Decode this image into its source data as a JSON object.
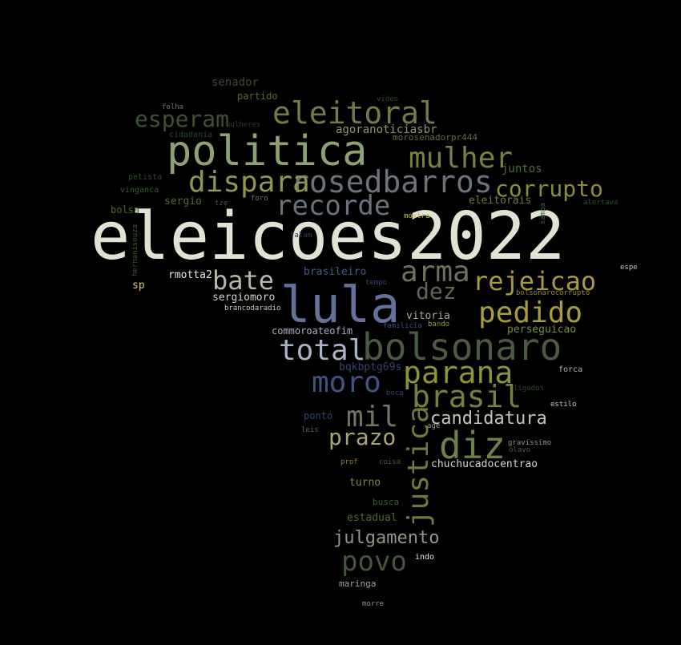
{
  "words": [
    {
      "text": "eleicoes2022",
      "color": "#dfe3d2"
    },
    {
      "text": "politica",
      "color": "#8ea171"
    },
    {
      "text": "lula",
      "color": "#63719b"
    },
    {
      "text": "bolsonaro",
      "color": "#4a5b41"
    },
    {
      "text": "rosedbarros",
      "color": "#6b727a"
    },
    {
      "text": "dispara",
      "color": "#8f9452"
    },
    {
      "text": "eleitoral",
      "color": "#6d7d46"
    },
    {
      "text": "mulher",
      "color": "#77813f"
    },
    {
      "text": "recorde",
      "color": "#66727d"
    },
    {
      "text": "corrupto",
      "color": "#8a8e31"
    },
    {
      "text": "esperam",
      "color": "#3d5232"
    },
    {
      "text": "arma",
      "color": "#6f6f5d"
    },
    {
      "text": "rejeicao",
      "color": "#a99b3a"
    },
    {
      "text": "bate",
      "color": "#b6b8a8"
    },
    {
      "text": "dez",
      "color": "#5f6850"
    },
    {
      "text": "pedido",
      "color": "#a79d3c"
    },
    {
      "text": "total",
      "color": "#a9b3c7"
    },
    {
      "text": "parana",
      "color": "#8b9436"
    },
    {
      "text": "moro",
      "color": "#3f5580"
    },
    {
      "text": "brasil",
      "color": "#76823b"
    },
    {
      "text": "mil",
      "color": "#6f7564"
    },
    {
      "text": "justica",
      "color": "#6c7d33"
    },
    {
      "text": "candidatura",
      "color": "#c8c7b6"
    },
    {
      "text": "diz",
      "color": "#6e8148"
    },
    {
      "text": "prazo",
      "color": "#a7a478"
    },
    {
      "text": "julgamento",
      "color": "#8e9886"
    },
    {
      "text": "povo",
      "color": "#45553d"
    },
    {
      "text": "senador",
      "color": "#3b4a35"
    },
    {
      "text": "partido",
      "color": "#4f6b2f"
    },
    {
      "text": "agoranoticiasbr",
      "color": "#8f9573"
    },
    {
      "text": "morosenadorpr444",
      "color": "#5d6e42"
    },
    {
      "text": "juntos",
      "color": "#4f6f36"
    },
    {
      "text": "eleitorais",
      "color": "#6a7d3a"
    },
    {
      "text": "sergio",
      "color": "#4d6a33"
    },
    {
      "text": "bolsa",
      "color": "#4d6a33"
    },
    {
      "text": "vinganca",
      "color": "#3d5d33"
    },
    {
      "text": "petista",
      "color": "#2f4a2b"
    },
    {
      "text": "cidadania",
      "color": "#2d4a2b"
    },
    {
      "text": "folha",
      "color": "#6e7365"
    },
    {
      "text": "mulheres",
      "color": "#2d3b2a"
    },
    {
      "text": "video",
      "color": "#2d4a2b"
    },
    {
      "text": "tze",
      "color": "#3f5d33"
    },
    {
      "text": "foro",
      "color": "#6f7560"
    },
    {
      "text": "mostra",
      "color": "#c8b94a"
    },
    {
      "text": "alertava",
      "color": "#2d5530"
    },
    {
      "text": "sampa",
      "color": "#3b6a33"
    },
    {
      "text": "espe",
      "color": "#c8cbc0"
    },
    {
      "text": "falam",
      "color": "#2a3b5a"
    },
    {
      "text": "hernanisouza",
      "color": "#3b5d33"
    },
    {
      "text": "rmotta2",
      "color": "#e3e6dc"
    },
    {
      "text": "sp",
      "color": "#d8c97a"
    },
    {
      "text": "brasileiro",
      "color": "#47598a"
    },
    {
      "text": "tempo",
      "color": "#2e4670"
    },
    {
      "text": "bolsonarocorrupto",
      "color": "#8f8b3a"
    },
    {
      "text": "sergiomoro",
      "color": "#d2d4c8"
    },
    {
      "text": "brancodaradio",
      "color": "#c6c8bf"
    },
    {
      "text": "vitoria",
      "color": "#a9ad97"
    },
    {
      "text": "bando",
      "color": "#9a9634"
    },
    {
      "text": "familicia",
      "color": "#38527a"
    },
    {
      "text": "commoroateofim",
      "color": "#a8b0bd"
    },
    {
      "text": "perseguicao",
      "color": "#7c8a36"
    },
    {
      "text": "bqkbptg69s",
      "color": "#2e4670"
    },
    {
      "text": "forca",
      "color": "#b0b3a6"
    },
    {
      "text": "ligados",
      "color": "#2d4a2b"
    },
    {
      "text": "boca",
      "color": "#2e4670"
    },
    {
      "text": "estilo",
      "color": "#c8cbc0"
    },
    {
      "text": "ponto",
      "color": "#2e4670"
    },
    {
      "text": "leis",
      "color": "#5f6352"
    },
    {
      "text": "age",
      "color": "#9e9a7a"
    },
    {
      "text": "gravissimo",
      "color": "#8f9589"
    },
    {
      "text": "olavo",
      "color": "#4e5a42"
    },
    {
      "text": "prof",
      "color": "#9a7a3a"
    },
    {
      "text": "coisa",
      "color": "#4a5a36"
    },
    {
      "text": "chuchucadocentrao",
      "color": "#d5d8cc"
    },
    {
      "text": "turno",
      "color": "#7a8a40"
    },
    {
      "text": "busca",
      "color": "#3d5d30"
    },
    {
      "text": "estadual",
      "color": "#4d6a33"
    },
    {
      "text": "indo",
      "color": "#e3e6dc"
    },
    {
      "text": "maringa",
      "color": "#a0a395"
    },
    {
      "text": "morre",
      "color": "#8f9487"
    }
  ]
}
